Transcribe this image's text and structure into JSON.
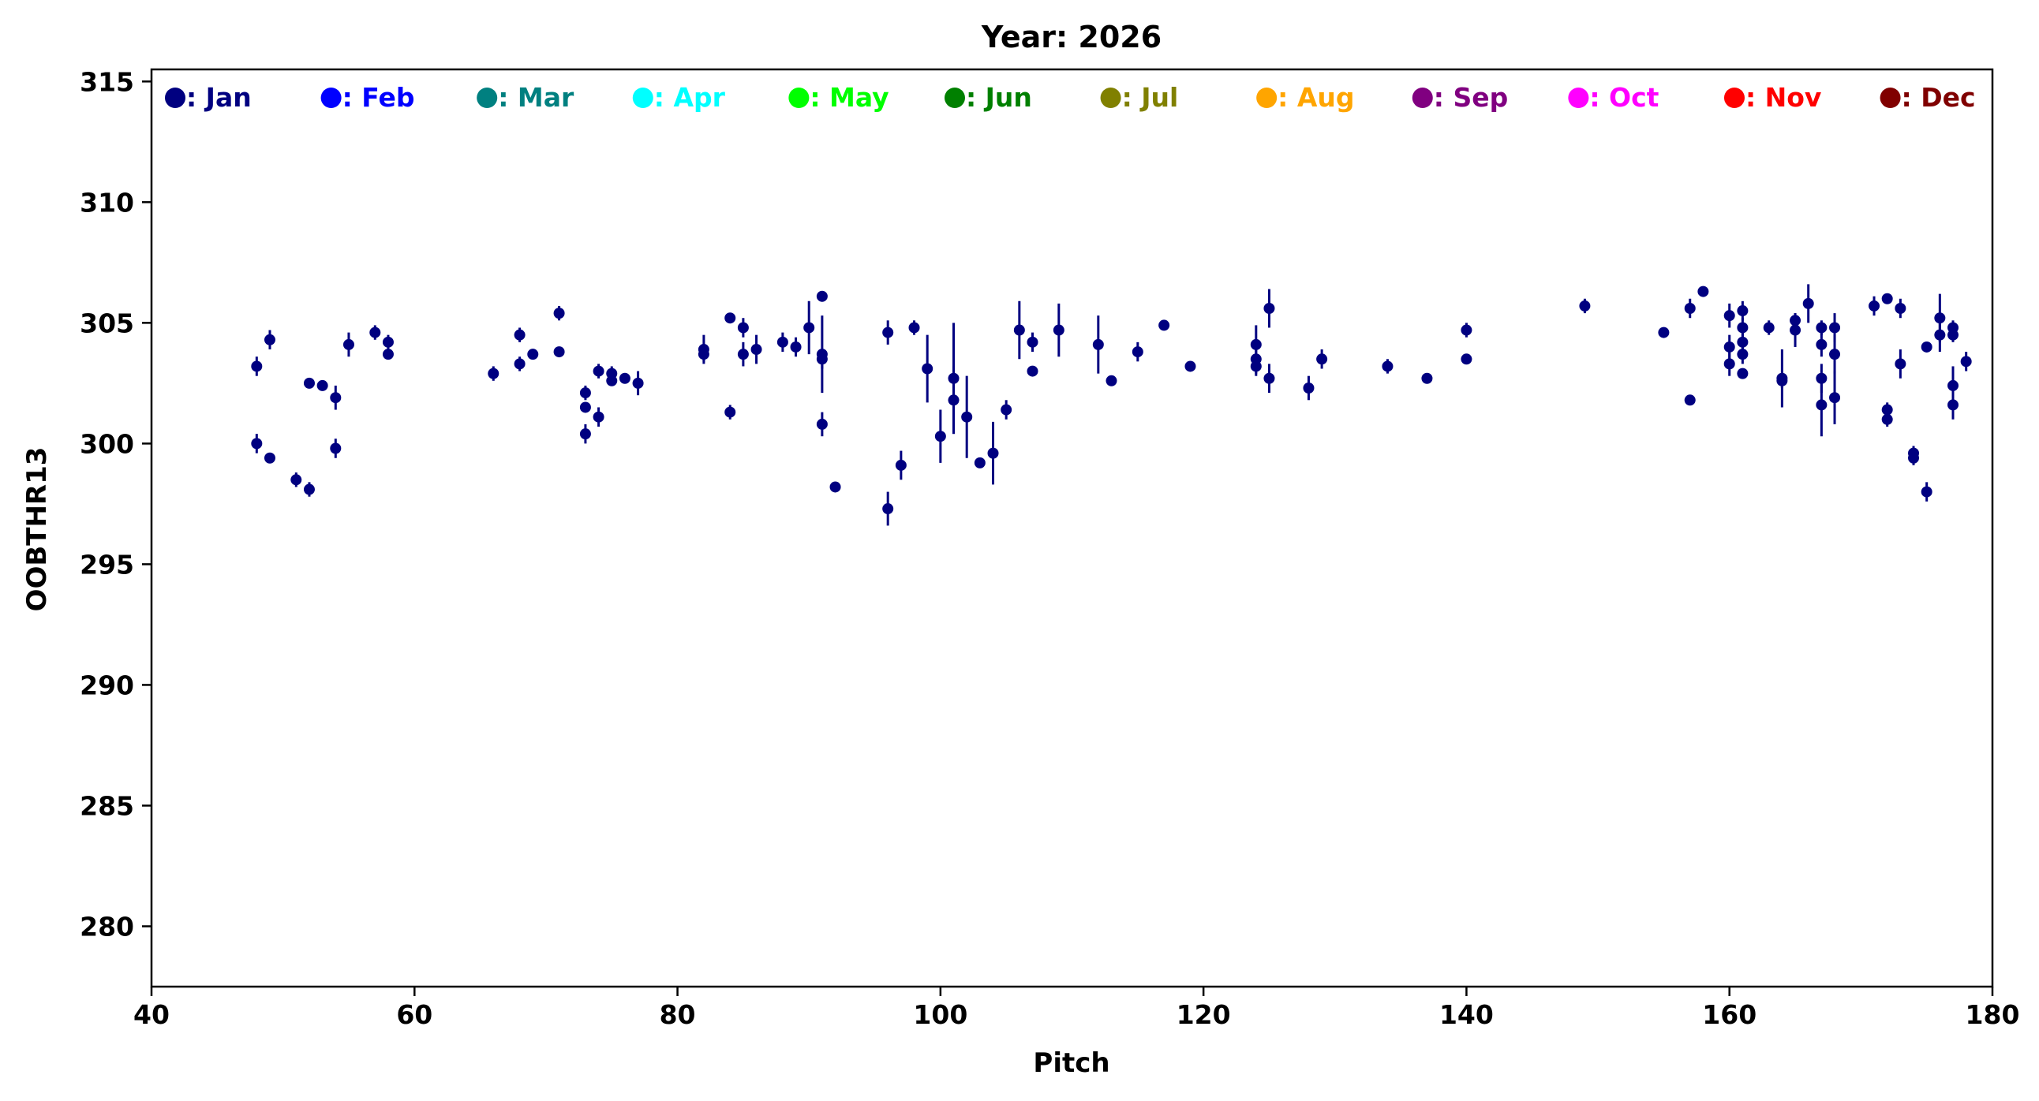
{
  "chart_data": {
    "type": "scatter",
    "title": "Year: 2026",
    "xlabel": "Pitch",
    "ylabel": "OOBTHR13",
    "xlim": [
      40,
      180
    ],
    "ylim": [
      277.5,
      315.5
    ],
    "xticks": [
      40,
      60,
      80,
      100,
      120,
      140,
      160,
      180
    ],
    "yticks": [
      280,
      285,
      290,
      295,
      300,
      305,
      310,
      315
    ],
    "grid": false,
    "error_bars": true,
    "legend_position": "top, inside plot, single row",
    "legend": [
      {
        "label": ": Jan",
        "color": "#000080"
      },
      {
        "label": ": Feb",
        "color": "#0000ff"
      },
      {
        "label": ": Mar",
        "color": "#008080"
      },
      {
        "label": ": Apr",
        "color": "#00ffff"
      },
      {
        "label": ": May",
        "color": "#00ff00"
      },
      {
        "label": ": Jun",
        "color": "#008000"
      },
      {
        "label": ": Jul",
        "color": "#808000"
      },
      {
        "label": ": Aug",
        "color": "#ffa500"
      },
      {
        "label": ": Sep",
        "color": "#800080"
      },
      {
        "label": ": Oct",
        "color": "#ff00ff"
      },
      {
        "label": ": Nov",
        "color": "#ff0000"
      },
      {
        "label": ": Dec",
        "color": "#800000"
      }
    ],
    "series": [
      {
        "name": "Jan",
        "color": "#000080",
        "points": [
          [
            48,
            303.2,
            0.4
          ],
          [
            48,
            300.0,
            0.4
          ],
          [
            49,
            304.3,
            0.4
          ],
          [
            49,
            299.4,
            0.2
          ],
          [
            51,
            298.5,
            0.3
          ],
          [
            52,
            302.5,
            0.1
          ],
          [
            52,
            298.1,
            0.3
          ],
          [
            53,
            302.4,
            0.1
          ],
          [
            54,
            301.9,
            0.5
          ],
          [
            54,
            299.8,
            0.4
          ],
          [
            55,
            304.1,
            0.5
          ],
          [
            57,
            304.6,
            0.3
          ],
          [
            58,
            304.2,
            0.3
          ],
          [
            58,
            303.7,
            0.2
          ],
          [
            66,
            302.9,
            0.3
          ],
          [
            68,
            304.5,
            0.3
          ],
          [
            68,
            303.3,
            0.3
          ],
          [
            69,
            303.7,
            0.2
          ],
          [
            71,
            305.4,
            0.3
          ],
          [
            71,
            303.8,
            0.2
          ],
          [
            73,
            302.1,
            0.3
          ],
          [
            73,
            301.5,
            0.2
          ],
          [
            73,
            300.4,
            0.4
          ],
          [
            74,
            303.0,
            0.3
          ],
          [
            74,
            301.1,
            0.4
          ],
          [
            75,
            302.9,
            0.3
          ],
          [
            75,
            302.6,
            0.2
          ],
          [
            76,
            302.7,
            0.1
          ],
          [
            77,
            302.5,
            0.5
          ],
          [
            82,
            303.9,
            0.6
          ],
          [
            82,
            303.7,
            0.3
          ],
          [
            84,
            305.2,
            0.1
          ],
          [
            84,
            301.3,
            0.3
          ],
          [
            85,
            304.8,
            0.4
          ],
          [
            85,
            303.7,
            0.5
          ],
          [
            86,
            303.9,
            0.6
          ],
          [
            88,
            304.2,
            0.4
          ],
          [
            89,
            304.0,
            0.4
          ],
          [
            90,
            304.8,
            1.1
          ],
          [
            91,
            306.1,
            0.2
          ],
          [
            91,
            303.7,
            1.6
          ],
          [
            91,
            303.5,
            0.4
          ],
          [
            91,
            300.8,
            0.5
          ],
          [
            92,
            298.2,
            0.1
          ],
          [
            96,
            304.6,
            0.5
          ],
          [
            96,
            297.3,
            0.7
          ],
          [
            97,
            299.1,
            0.6
          ],
          [
            98,
            304.8,
            0.3
          ],
          [
            99,
            303.1,
            1.4
          ],
          [
            100,
            300.3,
            1.1
          ],
          [
            101,
            302.7,
            2.3
          ],
          [
            101,
            301.8,
            1.4
          ],
          [
            102,
            301.1,
            1.7
          ],
          [
            103,
            299.2,
            0.2
          ],
          [
            104,
            299.6,
            1.3
          ],
          [
            105,
            301.4,
            0.4
          ],
          [
            106,
            304.7,
            1.2
          ],
          [
            107,
            304.2,
            0.4
          ],
          [
            107,
            303.0,
            0.2
          ],
          [
            109,
            304.7,
            1.1
          ],
          [
            112,
            304.1,
            1.2
          ],
          [
            113,
            302.6,
            0.1
          ],
          [
            115,
            303.8,
            0.4
          ],
          [
            117,
            304.9,
            0.2
          ],
          [
            119,
            303.2,
            0.2
          ],
          [
            124,
            304.1,
            0.8
          ],
          [
            124,
            303.5,
            0.6
          ],
          [
            124,
            303.2,
            0.4
          ],
          [
            125,
            305.6,
            0.8
          ],
          [
            125,
            302.7,
            0.6
          ],
          [
            128,
            302.3,
            0.5
          ],
          [
            129,
            303.5,
            0.4
          ],
          [
            134,
            303.2,
            0.3
          ],
          [
            137,
            302.7,
            0.1
          ],
          [
            140,
            304.7,
            0.3
          ],
          [
            140,
            303.5,
            0.2
          ],
          [
            149,
            305.7,
            0.3
          ],
          [
            155,
            304.6,
            0.2
          ],
          [
            157,
            305.6,
            0.4
          ],
          [
            157,
            301.8,
            0.2
          ],
          [
            158,
            306.3,
            0.2
          ],
          [
            160,
            305.3,
            0.5
          ],
          [
            160,
            304.0,
            0.5
          ],
          [
            160,
            303.3,
            0.5
          ],
          [
            161,
            305.5,
            0.4
          ],
          [
            161,
            304.8,
            0.4
          ],
          [
            161,
            304.2,
            0.4
          ],
          [
            161,
            303.7,
            0.4
          ],
          [
            161,
            302.9,
            0.2
          ],
          [
            163,
            304.8,
            0.3
          ],
          [
            164,
            302.7,
            1.2
          ],
          [
            164,
            302.6,
            0.3
          ],
          [
            165,
            305.1,
            0.3
          ],
          [
            165,
            304.7,
            0.7
          ],
          [
            166,
            305.8,
            0.8
          ],
          [
            167,
            304.8,
            0.3
          ],
          [
            167,
            304.1,
            0.5
          ],
          [
            167,
            302.7,
            0.6
          ],
          [
            167,
            301.6,
            1.3
          ],
          [
            168,
            304.8,
            0.6
          ],
          [
            168,
            303.7,
            0.8
          ],
          [
            168,
            301.9,
            1.1
          ],
          [
            171,
            305.7,
            0.4
          ],
          [
            172,
            306.0,
            0.2
          ],
          [
            172,
            301.4,
            0.3
          ],
          [
            172,
            301.0,
            0.3
          ],
          [
            173,
            305.6,
            0.4
          ],
          [
            173,
            303.3,
            0.6
          ],
          [
            174,
            299.6,
            0.3
          ],
          [
            174,
            299.4,
            0.3
          ],
          [
            175,
            304.0,
            0.2
          ],
          [
            175,
            298.0,
            0.4
          ],
          [
            176,
            305.2,
            1.0
          ],
          [
            176,
            304.5,
            0.7
          ],
          [
            177,
            304.8,
            0.3
          ],
          [
            177,
            304.5,
            0.3
          ],
          [
            177,
            302.4,
            0.8
          ],
          [
            177,
            301.6,
            0.6
          ],
          [
            178,
            303.4,
            0.4
          ]
        ]
      }
    ]
  }
}
